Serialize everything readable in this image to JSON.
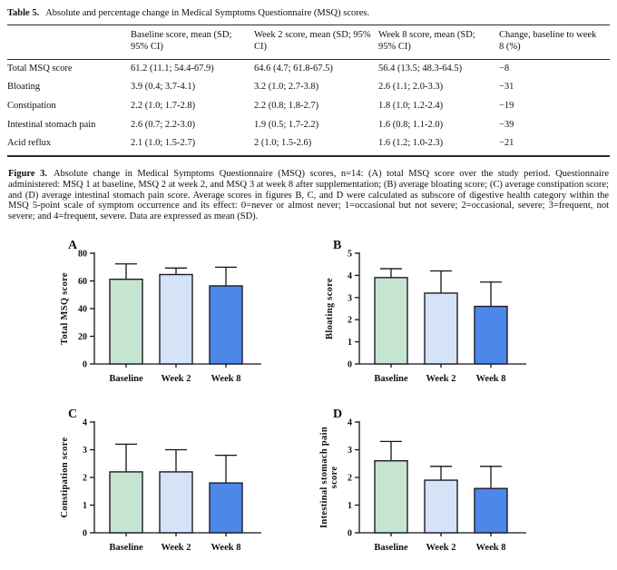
{
  "table": {
    "label": "Table 5.",
    "title": "Absolute and percentage change in Medical Symptoms Questionnaire (MSQ) scores.",
    "columns": [
      "",
      "Baseline score, mean (SD; 95% CI)",
      "Week 2 score, mean (SD; 95% CI)",
      "Week 8 score, mean (SD; 95% CI)",
      "Change, baseline to week 8 (%)"
    ],
    "rows": [
      [
        "Total MSQ score",
        "61.2 (11.1; 54.4-67.9)",
        "64.6 (4.7; 61.8-67.5)",
        "56.4 (13.5; 48.3-64.5)",
        "−8"
      ],
      [
        "Bloating",
        "3.9 (0.4; 3.7-4.1)",
        "3.2 (1.0; 2.7-3.8)",
        "2.6 (1.1; 2.0-3.3)",
        "−31"
      ],
      [
        "Constipation",
        "2.2 (1.0; 1.7-2.8)",
        "2.2 (0.8; 1.8-2.7)",
        "1.8 (1.0; 1.2-2.4)",
        "−19"
      ],
      [
        "Intestinal stomach pain",
        "2.6 (0.7; 2.2-3.0)",
        "1.9 (0.5; 1.7-2.2)",
        "1.6 (0.8; 1.1-2.0)",
        "−39"
      ],
      [
        "Acid reflux",
        "2.1 (1.0; 1.5-2.7)",
        "2 (1.0; 1.5-2.6)",
        "1.6 (1.2; 1.0-2.3)",
        "−21"
      ]
    ]
  },
  "figure": {
    "label": "Figure 3.",
    "caption": "Absolute change in Medical Symptoms Questionnaire (MSQ) scores, n=14: (A) total MSQ score over the study period. Questionnaire administered: MSQ 1 at baseline, MSQ 2 at week 2, and MSQ 3 at week 8 after supplementation; (B) average bloating score; (C) average constipation score; and (D) average intestinal stomach pain score. Average scores in figures B, C, and D were calculated as subscore of digestive health category within the MSQ 5-point scale of symptom occurrence and its effect: 0=never or almost never; 1=occasional but not severe; 2=occasional, severe; 3=frequent, not severe; and 4=frequent, severe. Data are expressed as mean (SD)."
  },
  "colors": {
    "bar_fills": [
      "#c6e5d1",
      "#d5e3f7",
      "#4e87ea"
    ],
    "bar_border": "#1c1c28",
    "axis": "#141414",
    "text": "#111111"
  },
  "chart_data": [
    {
      "type": "bar",
      "panel": "A",
      "ylabel": "Total MSQ score",
      "ylabel_lines": [
        "Total MSQ score"
      ],
      "categories": [
        "Baseline",
        "Week 2",
        "Week 8"
      ],
      "values": [
        61.2,
        64.6,
        56.4
      ],
      "sd": [
        11.1,
        4.7,
        13.5
      ],
      "ylim": [
        0,
        80
      ],
      "yticks": [
        0,
        20,
        40,
        60,
        80
      ],
      "grid": false,
      "legend": "none"
    },
    {
      "type": "bar",
      "panel": "B",
      "ylabel": "Bloating score",
      "ylabel_lines": [
        "Bloating score"
      ],
      "categories": [
        "Baseline",
        "Week 2",
        "Week 8"
      ],
      "values": [
        3.9,
        3.2,
        2.6
      ],
      "sd": [
        0.4,
        1.0,
        1.1
      ],
      "ylim": [
        0,
        5
      ],
      "yticks": [
        0,
        1,
        2,
        3,
        4,
        5
      ],
      "grid": false,
      "legend": "none"
    },
    {
      "type": "bar",
      "panel": "C",
      "ylabel": "Constipation score",
      "ylabel_lines": [
        "Constipation score"
      ],
      "categories": [
        "Baseline",
        "Week 2",
        "Week 8"
      ],
      "values": [
        2.2,
        2.2,
        1.8
      ],
      "sd": [
        1.0,
        0.8,
        1.0
      ],
      "ylim": [
        0,
        4
      ],
      "yticks": [
        0,
        1,
        2,
        3,
        4
      ],
      "grid": false,
      "legend": "none"
    },
    {
      "type": "bar",
      "panel": "D",
      "ylabel": "Intestinal stomach pain score",
      "ylabel_lines": [
        "Intestinal stomach pain",
        "score"
      ],
      "categories": [
        "Baseline",
        "Week 2",
        "Week 8"
      ],
      "values": [
        2.6,
        1.9,
        1.6
      ],
      "sd": [
        0.7,
        0.5,
        0.8
      ],
      "ylim": [
        0,
        4
      ],
      "yticks": [
        0,
        1,
        2,
        3,
        4
      ],
      "grid": false,
      "legend": "none"
    }
  ]
}
